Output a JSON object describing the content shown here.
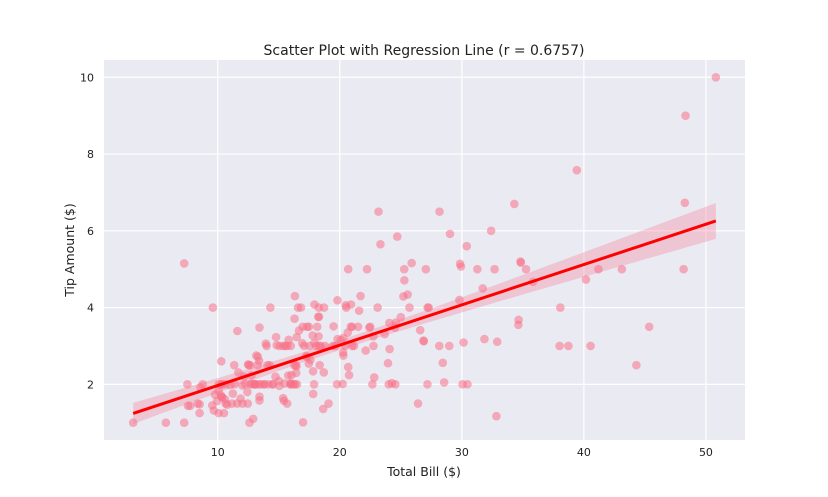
{
  "chart_data": {
    "type": "scatter",
    "title": "Scatter Plot with Regression Line (r = 0.6757)",
    "xlabel": "Total Bill ($)",
    "ylabel": "Tip Amount ($)",
    "xlim": [
      0.68,
      53.2
    ],
    "ylim": [
      0.55,
      10.45
    ],
    "xticks": [
      10,
      20,
      30,
      40,
      50
    ],
    "yticks": [
      2,
      4,
      6,
      8,
      10
    ],
    "grid": true,
    "colors": {
      "background": "#eaeaf2",
      "points": "#f77189",
      "line": "#ff0000",
      "band": "#f77189"
    },
    "regression": {
      "show_line": true,
      "confidence_band": true
    },
    "points": [
      [
        16.99,
        1.01
      ],
      [
        10.34,
        1.66
      ],
      [
        21.01,
        3.5
      ],
      [
        23.68,
        3.31
      ],
      [
        24.59,
        3.61
      ],
      [
        25.29,
        4.71
      ],
      [
        8.77,
        2.0
      ],
      [
        26.88,
        3.12
      ],
      [
        15.04,
        1.96
      ],
      [
        14.78,
        3.23
      ],
      [
        10.27,
        1.71
      ],
      [
        35.26,
        5.0
      ],
      [
        15.42,
        1.57
      ],
      [
        18.43,
        3.0
      ],
      [
        14.83,
        3.02
      ],
      [
        21.58,
        3.92
      ],
      [
        10.33,
        1.67
      ],
      [
        16.29,
        3.71
      ],
      [
        16.97,
        3.5
      ],
      [
        20.65,
        3.35
      ],
      [
        17.92,
        4.08
      ],
      [
        20.29,
        2.75
      ],
      [
        15.77,
        2.23
      ],
      [
        39.42,
        7.58
      ],
      [
        19.82,
        3.18
      ],
      [
        17.81,
        2.34
      ],
      [
        13.37,
        2.0
      ],
      [
        12.69,
        2.0
      ],
      [
        21.7,
        4.3
      ],
      [
        19.65,
        3.0
      ],
      [
        9.55,
        1.45
      ],
      [
        18.35,
        2.5
      ],
      [
        15.06,
        3.0
      ],
      [
        20.69,
        2.45
      ],
      [
        17.78,
        3.27
      ],
      [
        24.06,
        3.6
      ],
      [
        16.31,
        2.0
      ],
      [
        16.93,
        3.07
      ],
      [
        18.69,
        2.31
      ],
      [
        31.27,
        5.0
      ],
      [
        16.04,
        2.24
      ],
      [
        17.46,
        2.54
      ],
      [
        13.94,
        3.06
      ],
      [
        9.68,
        1.32
      ],
      [
        30.4,
        5.6
      ],
      [
        18.29,
        3.0
      ],
      [
        22.23,
        5.0
      ],
      [
        32.4,
        6.0
      ],
      [
        28.55,
        2.05
      ],
      [
        18.04,
        3.0
      ],
      [
        12.54,
        2.5
      ],
      [
        10.29,
        2.6
      ],
      [
        34.81,
        5.2
      ],
      [
        9.94,
        1.56
      ],
      [
        25.56,
        4.34
      ],
      [
        19.49,
        3.51
      ],
      [
        38.01,
        3.0
      ],
      [
        26.41,
        1.5
      ],
      [
        11.24,
        1.76
      ],
      [
        48.27,
        6.73
      ],
      [
        20.29,
        3.21
      ],
      [
        13.81,
        2.0
      ],
      [
        11.02,
        1.98
      ],
      [
        18.29,
        3.76
      ],
      [
        17.59,
        2.64
      ],
      [
        20.08,
        3.15
      ],
      [
        16.45,
        2.47
      ],
      [
        3.07,
        1.0
      ],
      [
        20.23,
        2.01
      ],
      [
        15.01,
        2.09
      ],
      [
        12.02,
        1.97
      ],
      [
        17.07,
        3.0
      ],
      [
        26.86,
        3.14
      ],
      [
        25.28,
        5.0
      ],
      [
        14.73,
        2.2
      ],
      [
        10.51,
        1.25
      ],
      [
        17.92,
        3.08
      ],
      [
        27.2,
        4.0
      ],
      [
        22.76,
        3.0
      ],
      [
        17.29,
        2.71
      ],
      [
        19.44,
        3.0
      ],
      [
        16.66,
        3.4
      ],
      [
        10.07,
        1.83
      ],
      [
        32.68,
        5.0
      ],
      [
        15.98,
        2.03
      ],
      [
        34.83,
        5.17
      ],
      [
        13.03,
        2.0
      ],
      [
        18.28,
        4.0
      ],
      [
        24.71,
        5.85
      ],
      [
        21.16,
        3.0
      ],
      [
        28.97,
        3.0
      ],
      [
        22.49,
        3.5
      ],
      [
        5.75,
        1.0
      ],
      [
        16.32,
        4.3
      ],
      [
        22.75,
        3.25
      ],
      [
        40.17,
        4.73
      ],
      [
        27.28,
        4.0
      ],
      [
        12.03,
        1.5
      ],
      [
        21.01,
        3.0
      ],
      [
        12.46,
        1.5
      ],
      [
        11.35,
        2.5
      ],
      [
        15.38,
        3.0
      ],
      [
        44.3,
        2.5
      ],
      [
        22.42,
        3.48
      ],
      [
        20.92,
        4.08
      ],
      [
        15.36,
        1.64
      ],
      [
        20.49,
        4.06
      ],
      [
        25.21,
        4.29
      ],
      [
        18.24,
        3.76
      ],
      [
        14.31,
        4.0
      ],
      [
        14.0,
        3.0
      ],
      [
        7.25,
        1.0
      ],
      [
        38.07,
        4.0
      ],
      [
        23.95,
        2.55
      ],
      [
        25.71,
        4.0
      ],
      [
        17.31,
        3.5
      ],
      [
        29.93,
        5.07
      ],
      [
        10.65,
        1.5
      ],
      [
        12.43,
        1.8
      ],
      [
        24.08,
        2.92
      ],
      [
        11.69,
        2.31
      ],
      [
        13.42,
        1.68
      ],
      [
        14.26,
        2.5
      ],
      [
        15.95,
        2.0
      ],
      [
        12.48,
        2.52
      ],
      [
        29.8,
        4.2
      ],
      [
        8.52,
        1.48
      ],
      [
        14.52,
        2.0
      ],
      [
        11.38,
        2.0
      ],
      [
        22.82,
        2.18
      ],
      [
        19.08,
        1.5
      ],
      [
        20.27,
        2.83
      ],
      [
        11.17,
        1.5
      ],
      [
        12.26,
        2.0
      ],
      [
        18.26,
        3.25
      ],
      [
        8.51,
        1.25
      ],
      [
        10.33,
        2.0
      ],
      [
        14.15,
        2.0
      ],
      [
        16.0,
        2.0
      ],
      [
        13.16,
        2.75
      ],
      [
        17.47,
        3.5
      ],
      [
        34.3,
        6.7
      ],
      [
        41.19,
        5.0
      ],
      [
        27.05,
        5.0
      ],
      [
        16.43,
        2.3
      ],
      [
        8.35,
        1.5
      ],
      [
        18.64,
        1.36
      ],
      [
        11.87,
        1.63
      ],
      [
        9.78,
        1.73
      ],
      [
        7.51,
        2.0
      ],
      [
        14.07,
        2.5
      ],
      [
        13.13,
        2.0
      ],
      [
        17.26,
        2.74
      ],
      [
        24.55,
        2.0
      ],
      [
        19.77,
        2.0
      ],
      [
        29.85,
        5.14
      ],
      [
        48.17,
        5.0
      ],
      [
        25.0,
        3.75
      ],
      [
        13.39,
        2.61
      ],
      [
        16.49,
        2.0
      ],
      [
        21.5,
        3.5
      ],
      [
        12.66,
        2.5
      ],
      [
        16.21,
        2.0
      ],
      [
        13.81,
        2.0
      ],
      [
        17.51,
        3.0
      ],
      [
        24.52,
        3.48
      ],
      [
        20.76,
        2.24
      ],
      [
        31.71,
        4.5
      ],
      [
        10.59,
        1.61
      ],
      [
        10.63,
        2.0
      ],
      [
        50.81,
        10.0
      ],
      [
        15.81,
        3.16
      ],
      [
        7.25,
        5.15
      ],
      [
        31.85,
        3.18
      ],
      [
        16.82,
        4.0
      ],
      [
        32.9,
        3.11
      ],
      [
        17.89,
        2.0
      ],
      [
        14.48,
        2.0
      ],
      [
        9.6,
        4.0
      ],
      [
        34.63,
        3.55
      ],
      [
        34.65,
        3.68
      ],
      [
        23.33,
        5.65
      ],
      [
        45.35,
        3.5
      ],
      [
        23.17,
        6.5
      ],
      [
        40.55,
        3.0
      ],
      [
        20.69,
        5.0
      ],
      [
        20.9,
        3.5
      ],
      [
        30.46,
        2.0
      ],
      [
        18.15,
        3.5
      ],
      [
        23.1,
        4.0
      ],
      [
        15.69,
        1.5
      ],
      [
        19.81,
        4.19
      ],
      [
        28.44,
        2.56
      ],
      [
        15.48,
        2.02
      ],
      [
        16.58,
        4.0
      ],
      [
        7.56,
        1.44
      ],
      [
        10.34,
        2.0
      ],
      [
        43.11,
        5.0
      ],
      [
        13.0,
        2.0
      ],
      [
        13.51,
        2.0
      ],
      [
        18.71,
        4.0
      ],
      [
        12.74,
        2.01
      ],
      [
        13.0,
        2.0
      ],
      [
        16.4,
        2.5
      ],
      [
        20.53,
        4.0
      ],
      [
        16.47,
        3.23
      ],
      [
        26.59,
        3.41
      ],
      [
        38.73,
        3.0
      ],
      [
        24.27,
        2.03
      ],
      [
        12.76,
        2.23
      ],
      [
        30.06,
        2.0
      ],
      [
        25.89,
        5.16
      ],
      [
        48.33,
        9.0
      ],
      [
        13.27,
        2.5
      ],
      [
        28.17,
        6.5
      ],
      [
        12.9,
        1.1
      ],
      [
        28.15,
        3.0
      ],
      [
        11.59,
        1.5
      ],
      [
        7.74,
        1.44
      ],
      [
        30.14,
        3.09
      ],
      [
        12.16,
        2.2
      ],
      [
        13.42,
        3.48
      ],
      [
        8.58,
        1.92
      ],
      [
        15.98,
        3.0
      ],
      [
        13.42,
        1.58
      ],
      [
        16.27,
        2.5
      ],
      [
        10.09,
        2.0
      ],
      [
        20.45,
        3.0
      ],
      [
        13.28,
        2.72
      ],
      [
        22.12,
        2.88
      ],
      [
        24.01,
        2.0
      ],
      [
        15.69,
        3.0
      ],
      [
        11.61,
        3.39
      ],
      [
        10.77,
        1.47
      ],
      [
        15.53,
        3.0
      ],
      [
        10.07,
        1.25
      ],
      [
        12.6,
        1.0
      ],
      [
        32.83,
        1.17
      ],
      [
        35.83,
        4.67
      ],
      [
        29.03,
        5.92
      ],
      [
        27.18,
        2.0
      ],
      [
        22.67,
        2.0
      ],
      [
        17.82,
        1.75
      ],
      [
        18.78,
        3.0
      ]
    ]
  }
}
